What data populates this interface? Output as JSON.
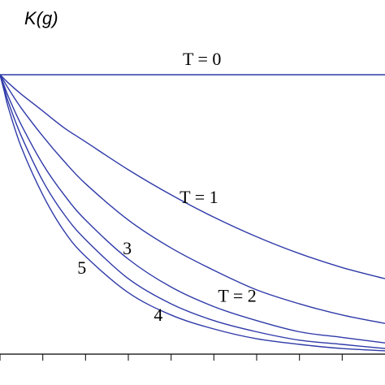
{
  "chart_data": {
    "type": "line",
    "ylabel": "K(g)",
    "xlabel": "",
    "title": "",
    "xlim": [
      0,
      9
    ],
    "ylim": [
      0,
      1
    ],
    "x_ticks": [
      0,
      1,
      2,
      3,
      4,
      5,
      6,
      7,
      8
    ],
    "grid": false,
    "line_color": "#2f3aa8",
    "x": [
      0,
      0.1,
      0.2,
      0.5,
      1,
      1.5,
      2,
      3,
      4,
      5,
      6,
      7,
      8,
      9
    ],
    "series": [
      {
        "label": "T = 0",
        "values": [
          1.0,
          1.0,
          1.0,
          1.0,
          1.0,
          1.0,
          1.0,
          1.0,
          1.0,
          1.0,
          1.0,
          1.0,
          1.0,
          1.0
        ]
      },
      {
        "label": "T = 1",
        "values": [
          1.0,
          0.985,
          0.97,
          0.93,
          0.87,
          0.81,
          0.76,
          0.66,
          0.57,
          0.49,
          0.42,
          0.36,
          0.31,
          0.27
        ]
      },
      {
        "label": "T = 2",
        "values": [
          1.0,
          0.975,
          0.95,
          0.88,
          0.78,
          0.69,
          0.61,
          0.48,
          0.38,
          0.3,
          0.23,
          0.18,
          0.14,
          0.11
        ]
      },
      {
        "label": "3",
        "values": [
          1.0,
          0.96,
          0.92,
          0.82,
          0.68,
          0.57,
          0.48,
          0.34,
          0.24,
          0.17,
          0.12,
          0.08,
          0.06,
          0.04
        ]
      },
      {
        "label": "4",
        "values": [
          1.0,
          0.95,
          0.9,
          0.78,
          0.62,
          0.5,
          0.41,
          0.27,
          0.18,
          0.12,
          0.08,
          0.05,
          0.035,
          0.02
        ]
      },
      {
        "label": "5",
        "values": [
          1.0,
          0.94,
          0.88,
          0.74,
          0.57,
          0.44,
          0.35,
          0.22,
          0.14,
          0.09,
          0.055,
          0.035,
          0.02,
          0.012
        ]
      }
    ]
  }
}
